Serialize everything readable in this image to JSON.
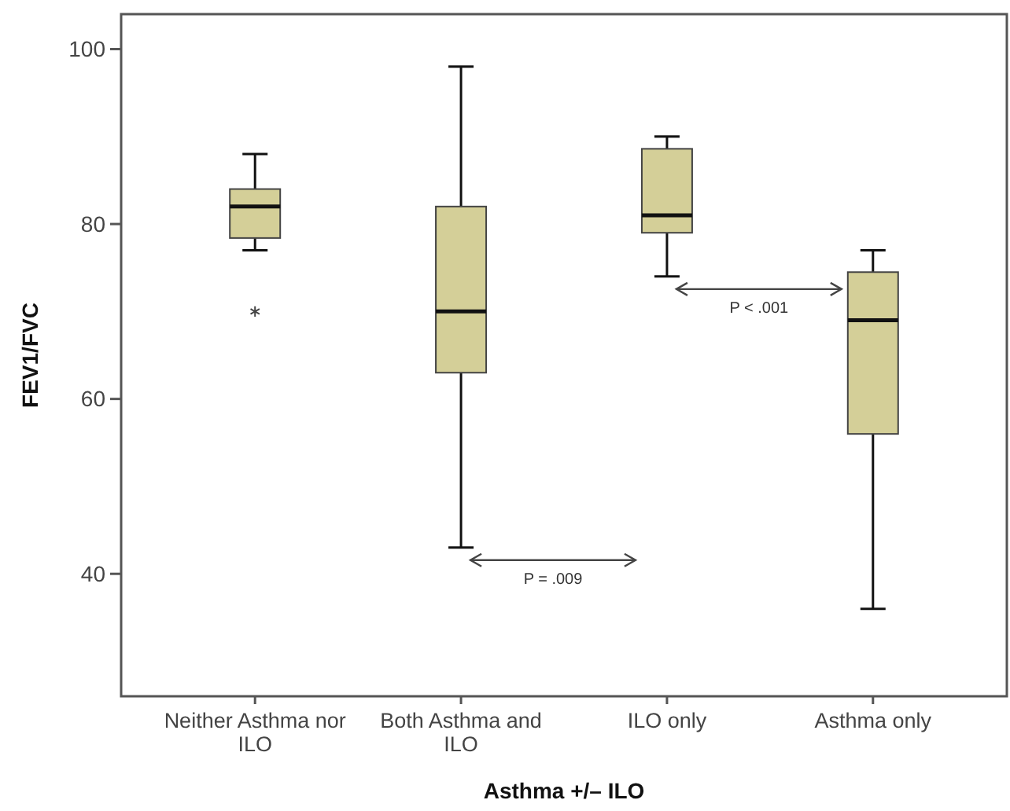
{
  "chart_data": {
    "type": "box",
    "xlabel": "Asthma +/– ILO",
    "ylabel": "FEV1/FVC",
    "categories": [
      "Neither Asthma nor ILO",
      "Both Asthma and ILO",
      "ILO only",
      "Asthma only"
    ],
    "color": "#d4cf98",
    "boxes": [
      {
        "low": 77,
        "q1": 78.4,
        "median": 82,
        "q3": 84,
        "high": 88,
        "outliers": [
          70
        ]
      },
      {
        "low": 43,
        "q1": 63,
        "median": 70,
        "q3": 82,
        "high": 98
      },
      {
        "low": 74,
        "q1": 79,
        "median": 81,
        "q3": 88.6,
        "high": 90
      },
      {
        "low": 36,
        "q1": 56,
        "median": 69,
        "q3": 74.5,
        "high": 77
      }
    ],
    "ylim": [
      26,
      104
    ],
    "yticks": [
      40,
      60,
      80,
      100
    ],
    "grid": false,
    "annotations": [
      "P = .009",
      "P < .001"
    ]
  }
}
